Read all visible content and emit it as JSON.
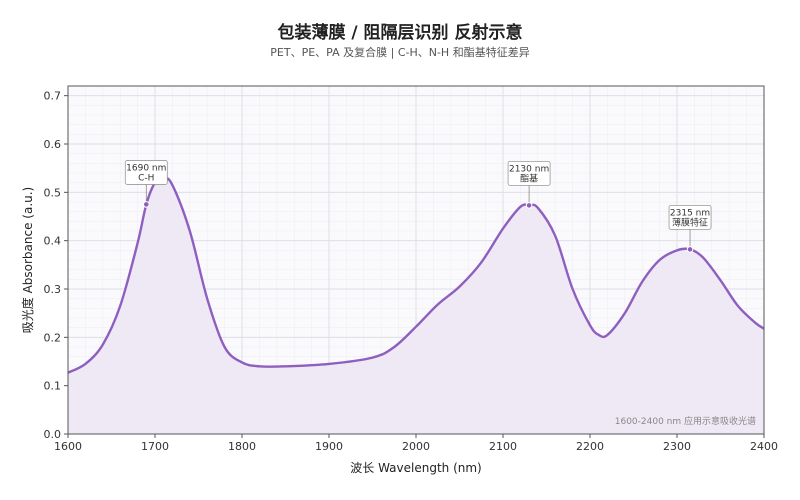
{
  "chart_data": {
    "type": "area",
    "title": "包装薄膜 / 阻隔层识别  反射示意",
    "subtitle": "PET、PE、PA 及复合膜 | C-H、N-H 和酯基特征差异",
    "xlabel": "波长 Wavelength (nm)",
    "ylabel": "吸光度 Absorbance (a.u.)",
    "xlim": [
      1600,
      2400
    ],
    "ylim": [
      0,
      0.72
    ],
    "x_ticks": [
      1600,
      1700,
      1800,
      1900,
      2000,
      2100,
      2200,
      2300,
      2400
    ],
    "y_ticks": [
      0.0,
      0.1,
      0.2,
      0.3,
      0.4,
      0.5,
      0.6,
      0.7
    ],
    "grid": true,
    "color": "#8e5fbf",
    "fill_color": "#efe9f6",
    "x": [
      1600,
      1620,
      1640,
      1660,
      1680,
      1690,
      1700,
      1710,
      1720,
      1740,
      1760,
      1780,
      1800,
      1820,
      1850,
      1900,
      1950,
      1975,
      2000,
      2025,
      2050,
      2075,
      2100,
      2120,
      2130,
      2140,
      2160,
      2180,
      2200,
      2210,
      2220,
      2240,
      2260,
      2280,
      2300,
      2315,
      2330,
      2350,
      2370,
      2390,
      2400
    ],
    "values": [
      0.127,
      0.145,
      0.185,
      0.265,
      0.395,
      0.475,
      0.52,
      0.53,
      0.515,
      0.42,
      0.28,
      0.18,
      0.148,
      0.14,
      0.14,
      0.145,
      0.158,
      0.18,
      0.222,
      0.268,
      0.305,
      0.355,
      0.425,
      0.47,
      0.473,
      0.468,
      0.41,
      0.3,
      0.225,
      0.205,
      0.205,
      0.25,
      0.315,
      0.36,
      0.38,
      0.382,
      0.365,
      0.318,
      0.265,
      0.23,
      0.218
    ],
    "annotations": [
      {
        "x": 1690,
        "y": 0.475,
        "lines": [
          "1690 nm",
          "C-H"
        ]
      },
      {
        "x": 2130,
        "y": 0.473,
        "lines": [
          "2130 nm",
          "酯基"
        ]
      },
      {
        "x": 2315,
        "y": 0.382,
        "lines": [
          "2315 nm",
          "薄膜特征"
        ]
      }
    ],
    "note": "1600-2400 nm 应用示意吸收光谱"
  }
}
